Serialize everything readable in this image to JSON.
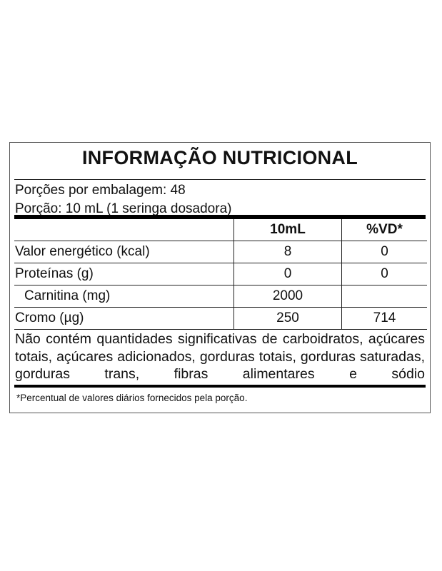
{
  "title": "INFORMAÇÃO NUTRICIONAL",
  "servings_per_package": "Porções por embalagem: 48",
  "serving_size": "Porção: 10 mL (1 seringa dosadora)",
  "table": {
    "headers": [
      "",
      "10mL",
      "%VD*"
    ],
    "rows": [
      {
        "name": "Valor energético (kcal)",
        "amount": "8",
        "dv": "0"
      },
      {
        "name": "Proteínas (g)",
        "amount": "0",
        "dv": "0"
      },
      {
        "name": "Carnitina (mg)",
        "amount": "2000",
        "dv": ""
      },
      {
        "name": "Cromo (µg)",
        "amount": "250",
        "dv": "714"
      }
    ]
  },
  "disclaimer": "Não contém quantidades significativas de carboidratos, açúcares totais, açúcares adicionados, gorduras totais, gorduras saturadas, gorduras trans, fibras alimentares e sódio",
  "footnote": "*Percentual de valores diários fornecidos pela porção."
}
